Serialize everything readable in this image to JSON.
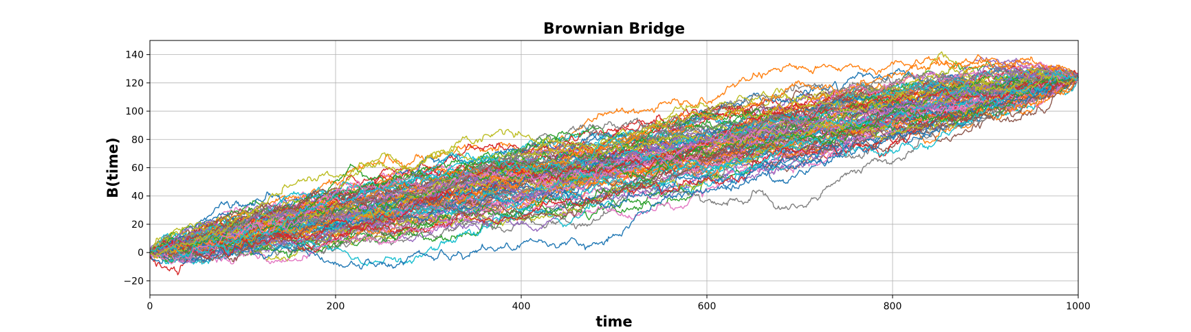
{
  "chart_data": {
    "type": "line",
    "title": "Brownian Bridge",
    "xlabel": "time",
    "ylabel": "B(time)",
    "xlim": [
      0,
      1000
    ],
    "ylim": [
      -30,
      150
    ],
    "xticks": [
      "0",
      "200",
      "400",
      "600",
      "800",
      "1000"
    ],
    "yticks": [
      "−20",
      "0",
      "20",
      "40",
      "60",
      "80",
      "100",
      "120",
      "140"
    ],
    "grid": true,
    "legend": "none",
    "n_points": 1000,
    "start": [
      0,
      0
    ],
    "end": [
      1000,
      124
    ],
    "n_series": 100,
    "series_colors": [
      "#1f77b4",
      "#ff7f0e",
      "#2ca02c",
      "#d62728",
      "#9467bd",
      "#8c564b",
      "#e377c2",
      "#7f7f7f",
      "#bcbd22",
      "#17becf"
    ],
    "visible_extremes": {
      "max": {
        "x": 930,
        "y": 141
      },
      "min": {
        "x": 160,
        "y": -21
      },
      "upper_envelope": [
        [
          0,
          0
        ],
        [
          200,
          45
        ],
        [
          350,
          90
        ],
        [
          450,
          101
        ],
        [
          600,
          107
        ],
        [
          700,
          123
        ],
        [
          800,
          135
        ],
        [
          930,
          141
        ],
        [
          1000,
          124
        ]
      ],
      "lower_envelope": [
        [
          0,
          -5
        ],
        [
          100,
          -15
        ],
        [
          160,
          -21
        ],
        [
          250,
          -3
        ],
        [
          400,
          10
        ],
        [
          550,
          25
        ],
        [
          650,
          30
        ],
        [
          750,
          55
        ],
        [
          850,
          80
        ],
        [
          950,
          95
        ],
        [
          1000,
          124
        ]
      ]
    }
  }
}
